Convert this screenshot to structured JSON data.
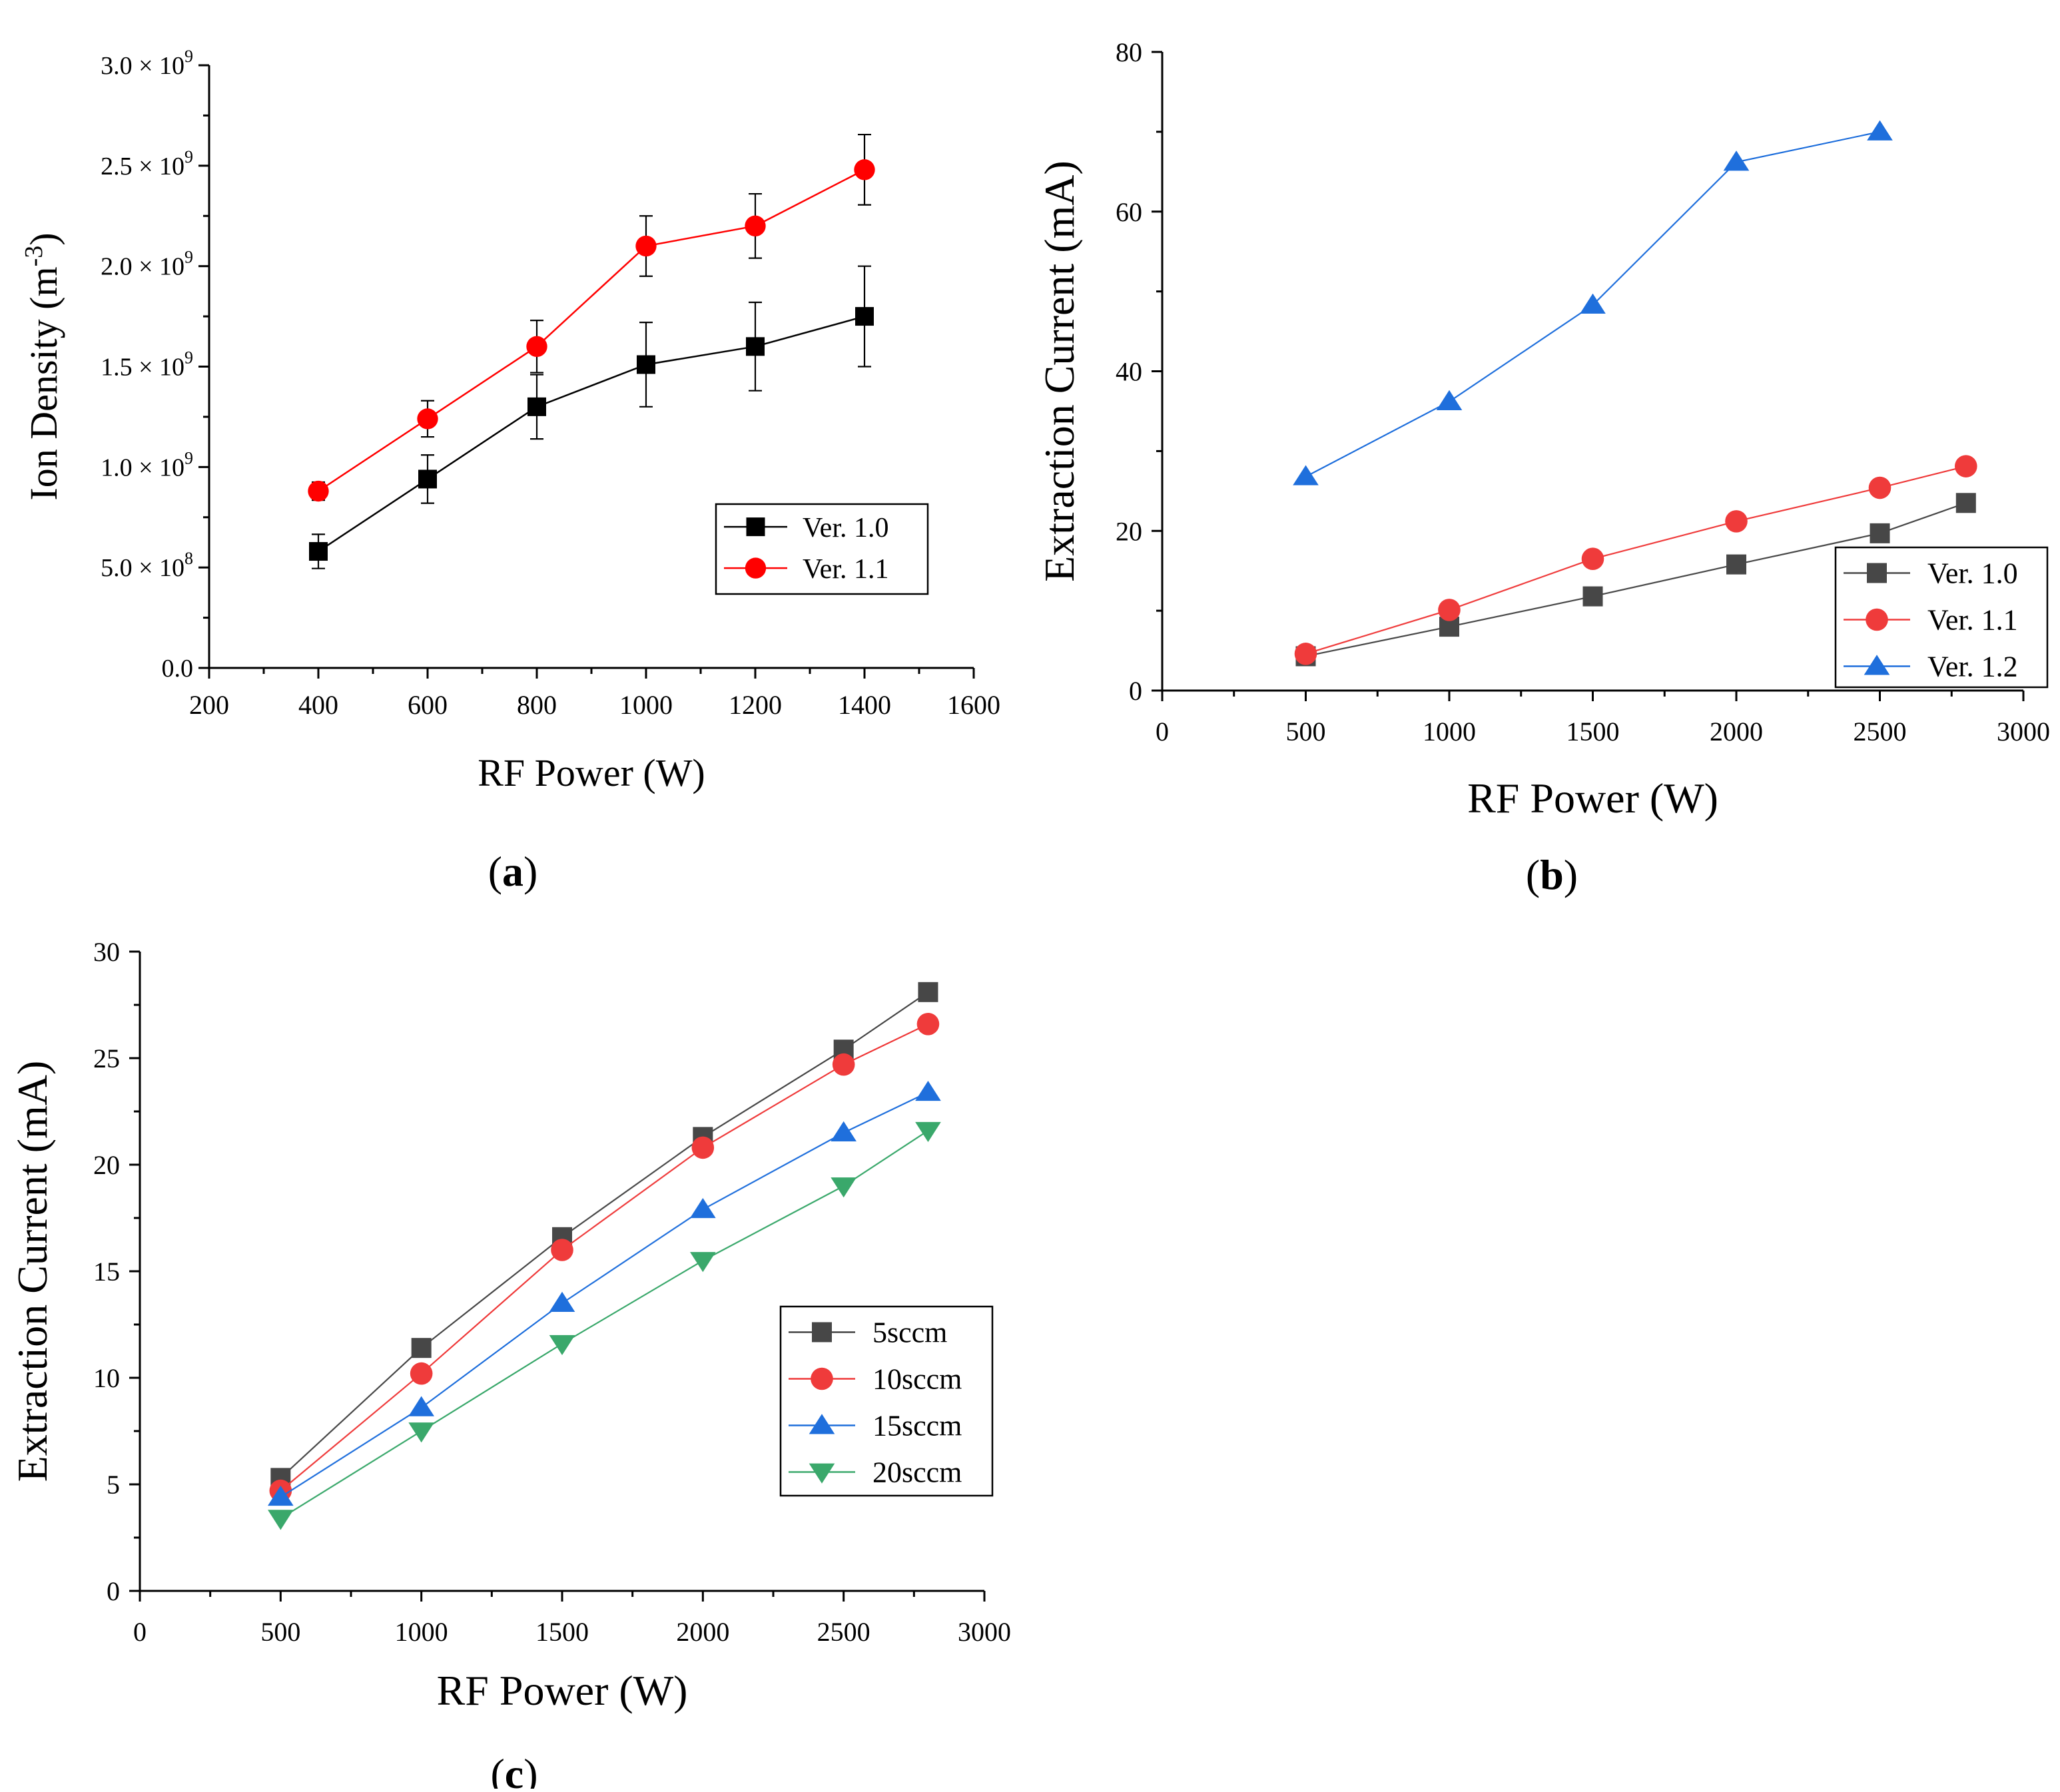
{
  "chart_data": [
    {
      "panel": "a",
      "panel_label": "a",
      "type": "line",
      "xlabel": "RF Power (W)",
      "ylabel_main": "Ion Density (m",
      "ylabel_sup": "-3",
      "ylabel_close": ")",
      "xlim": [
        200,
        1600
      ],
      "ylim": [
        0,
        3000000000
      ],
      "xticks": [
        200,
        400,
        600,
        800,
        1000,
        1200,
        1400,
        1600
      ],
      "xtick_labels": [
        "200",
        "400",
        "600",
        "800",
        "1000",
        "1200",
        "1400",
        "1600"
      ],
      "yticks": [
        {
          "value": 0,
          "label": "0.0",
          "exp": ""
        },
        {
          "value": 500000000,
          "label": "5.0 × 10",
          "exp": "8"
        },
        {
          "value": 1000000000,
          "label": "1.0 × 10",
          "exp": "9"
        },
        {
          "value": 1500000000,
          "label": "1.5 × 10",
          "exp": "9"
        },
        {
          "value": 2000000000,
          "label": "2.0 × 10",
          "exp": "9"
        },
        {
          "value": 2500000000,
          "label": "2.5 × 10",
          "exp": "9"
        },
        {
          "value": 3000000000,
          "label": "3.0 × 10",
          "exp": "9"
        }
      ],
      "legend_position": "lower-right",
      "series": [
        {
          "name": "Ver. 1.0",
          "color": "#000000",
          "marker": "square",
          "x": [
            400,
            600,
            800,
            1000,
            1200,
            1400
          ],
          "y": [
            580000000,
            940000000,
            1300000000,
            1510000000,
            1600000000,
            1750000000
          ],
          "err": [
            85000000,
            120000000,
            160000000,
            210000000,
            220000000,
            250000000
          ]
        },
        {
          "name": "Ver. 1.1",
          "color": "#ff0000",
          "marker": "circle",
          "x": [
            400,
            600,
            800,
            1000,
            1200,
            1400
          ],
          "y": [
            880000000,
            1240000000,
            1600000000,
            2100000000,
            2200000000,
            2480000000
          ],
          "err": [
            45000000,
            90000000,
            130000000,
            150000000,
            160000000,
            175000000
          ]
        }
      ]
    },
    {
      "panel": "b",
      "panel_label": "b",
      "type": "line",
      "xlabel": "RF Power (W)",
      "ylabel": "Extraction Current (mA)",
      "xlim": [
        0,
        3000
      ],
      "ylim": [
        0,
        80
      ],
      "xticks": [
        0,
        500,
        1000,
        1500,
        2000,
        2500,
        3000
      ],
      "xtick_labels": [
        "0",
        "500",
        "1000",
        "1500",
        "2000",
        "2500",
        "3000"
      ],
      "yticks": [
        0,
        20,
        40,
        60,
        80
      ],
      "ytick_labels": [
        "0",
        "20",
        "40",
        "60",
        "80"
      ],
      "legend_position": "lower-right",
      "series": [
        {
          "name": "Ver. 1.0",
          "color": "#474747",
          "marker": "square",
          "x": [
            500,
            1000,
            1500,
            2000,
            2500,
            2800
          ],
          "y": [
            4.3,
            8.0,
            11.8,
            15.8,
            19.7,
            23.5
          ]
        },
        {
          "name": "Ver. 1.1",
          "color": "#ef3b3b",
          "marker": "circle",
          "x": [
            500,
            1000,
            1500,
            2000,
            2500,
            2800
          ],
          "y": [
            4.6,
            10.1,
            16.5,
            21.2,
            25.4,
            28.1
          ]
        },
        {
          "name": "Ver. 1.2",
          "color": "#1f6fdc",
          "marker": "triangle-up",
          "x": [
            500,
            1000,
            1500,
            2000,
            2500
          ],
          "y": [
            26.8,
            36.2,
            48.3,
            66.2,
            70.0
          ]
        }
      ]
    },
    {
      "panel": "c",
      "panel_label": "c",
      "type": "line",
      "xlabel": "RF Power (W)",
      "ylabel": "Extraction Current (mA)",
      "xlim": [
        0,
        3000
      ],
      "ylim": [
        0,
        30
      ],
      "xticks": [
        0,
        500,
        1000,
        1500,
        2000,
        2500,
        3000
      ],
      "xtick_labels": [
        "0",
        "500",
        "1000",
        "1500",
        "2000",
        "2500",
        "3000"
      ],
      "yticks": [
        0,
        5,
        10,
        15,
        20,
        25,
        30
      ],
      "ytick_labels": [
        "0",
        "5",
        "10",
        "15",
        "20",
        "25",
        "30"
      ],
      "legend_position": "lower-right",
      "series": [
        {
          "name": "5sccm",
          "color": "#474747",
          "marker": "square",
          "x": [
            500,
            1000,
            1500,
            2000,
            2500,
            2800
          ],
          "y": [
            5.3,
            11.4,
            16.6,
            21.3,
            25.4,
            28.1
          ]
        },
        {
          "name": "10sccm",
          "color": "#ef3b3b",
          "marker": "circle",
          "x": [
            500,
            1000,
            1500,
            2000,
            2500,
            2800
          ],
          "y": [
            4.7,
            10.2,
            16.0,
            20.8,
            24.7,
            26.6
          ]
        },
        {
          "name": "15sccm",
          "color": "#1f6fdc",
          "marker": "triangle-up",
          "x": [
            500,
            1000,
            1500,
            2000,
            2500,
            2800
          ],
          "y": [
            4.4,
            8.6,
            13.5,
            17.9,
            21.5,
            23.4
          ]
        },
        {
          "name": "20sccm",
          "color": "#3aa86b",
          "marker": "triangle-down",
          "x": [
            500,
            1000,
            1500,
            2000,
            2500,
            2800
          ],
          "y": [
            3.4,
            7.5,
            11.6,
            15.5,
            19.0,
            21.6
          ]
        }
      ]
    }
  ]
}
